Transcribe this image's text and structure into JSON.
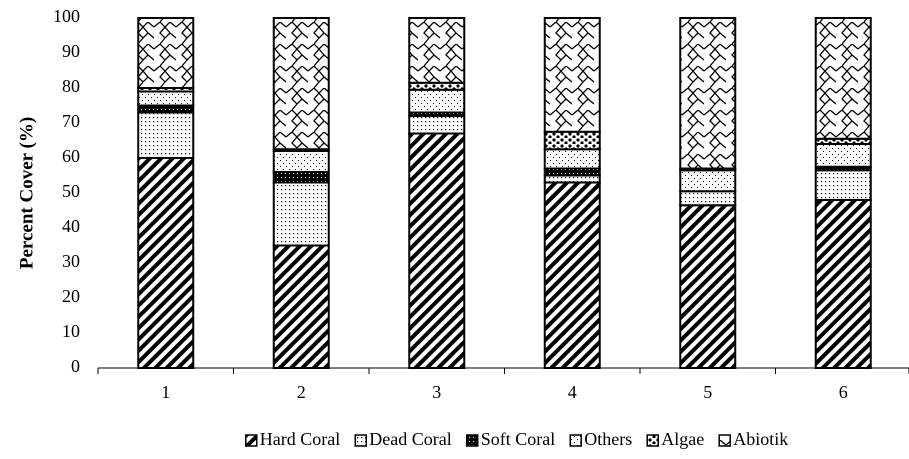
{
  "chart_data": {
    "type": "stacked_bar",
    "y_label": "Percent Cover (%)",
    "categories": [
      "1",
      "2",
      "3",
      "4",
      "5",
      "6"
    ],
    "series": [
      {
        "name": "Hard Coral",
        "color": "#000000",
        "values": [
          60,
          35,
          67,
          53,
          46.5,
          48
        ]
      },
      {
        "name": "Dead Coral",
        "color": "#000000",
        "values": [
          13,
          18,
          5,
          2,
          4,
          8.5
        ]
      },
      {
        "name": "Soft Coral",
        "color": "#000000",
        "values": [
          2,
          3,
          1,
          2,
          0,
          1
        ]
      },
      {
        "name": "Others",
        "color": "#000000",
        "values": [
          4,
          6,
          6.5,
          5.5,
          6,
          6.5
        ]
      },
      {
        "name": "Algae",
        "color": "#000000",
        "values": [
          1,
          0.5,
          2,
          5,
          0.5,
          1.5
        ]
      },
      {
        "name": "Abiotik",
        "color": "#000000",
        "values": [
          20,
          37.5,
          18.5,
          32.5,
          43,
          34.5
        ]
      }
    ],
    "ylim": [
      0,
      100
    ],
    "yticks": [
      0,
      10,
      20,
      30,
      40,
      50,
      60,
      70,
      80,
      90,
      100
    ],
    "legend": "bottom"
  }
}
